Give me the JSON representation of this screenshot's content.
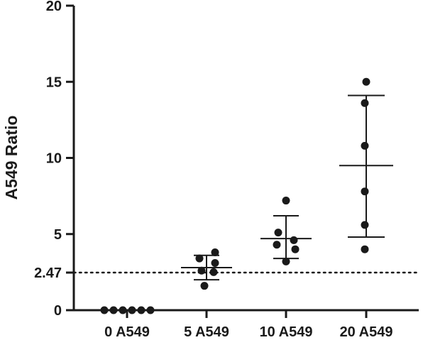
{
  "chart_data": {
    "type": "scatter",
    "title": "",
    "ylabel": "A549 Ratio",
    "xlabel": "",
    "ylim": [
      0,
      20
    ],
    "yticks": [
      0,
      5,
      10,
      15,
      20
    ],
    "yticks_labels": [
      "0",
      "5",
      "10",
      "15",
      "20"
    ],
    "reference_line": {
      "value": 2.47,
      "label": "2.47",
      "style": "dotted"
    },
    "categories": [
      "0 A549",
      "5 A549",
      "10 A549",
      "20 A549"
    ],
    "groups": [
      {
        "category": "0 A549",
        "points": [
          0,
          0,
          0,
          0,
          0,
          0
        ],
        "mean": 0,
        "sd_low": 0,
        "sd_high": 0
      },
      {
        "category": "5 A549",
        "points": [
          3.8,
          3.4,
          3.1,
          2.6,
          2.5,
          1.6
        ],
        "mean": 2.8,
        "sd_low": 2.0,
        "sd_high": 3.6
      },
      {
        "category": "10 A549",
        "points": [
          7.2,
          5.1,
          4.6,
          4.3,
          4.0,
          3.2
        ],
        "mean": 4.7,
        "sd_low": 3.4,
        "sd_high": 6.2
      },
      {
        "category": "20 A549",
        "points": [
          15.0,
          13.6,
          10.8,
          7.8,
          5.6,
          4.0
        ],
        "mean": 9.5,
        "sd_low": 4.8,
        "sd_high": 14.1
      }
    ],
    "grid": false,
    "colors": {
      "point": "#1a1a1a",
      "axis": "#1a1a1a"
    }
  }
}
